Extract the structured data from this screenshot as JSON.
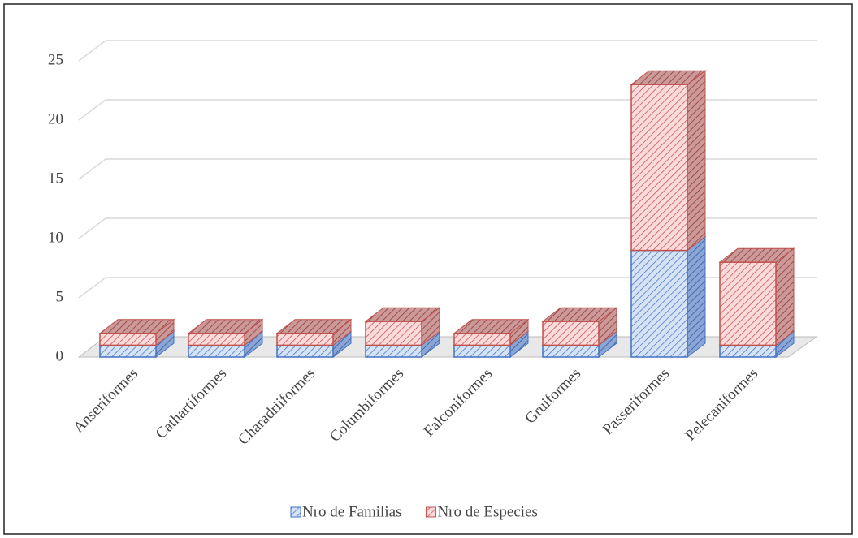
{
  "chart_data": {
    "type": "bar3d_stacked",
    "categories": [
      "Anseriformes",
      "Cathartiformes",
      "Charadriiformes",
      "Columbiformes",
      "Falconiformes",
      "Gruiformes",
      "Passeriformes",
      "Pelecaniformes"
    ],
    "series": [
      {
        "name": "Nro de Familias",
        "color": "#4472c4",
        "values": [
          1,
          1,
          1,
          1,
          1,
          1,
          9,
          1
        ]
      },
      {
        "name": "Nro de Especies",
        "color": "#c0504d",
        "values": [
          1,
          1,
          1,
          2,
          1,
          2,
          14,
          7
        ]
      }
    ],
    "ylim": [
      0,
      25
    ],
    "yticks": [
      0,
      5,
      10,
      15,
      20,
      25
    ],
    "grid": true,
    "legend": "bottom"
  }
}
